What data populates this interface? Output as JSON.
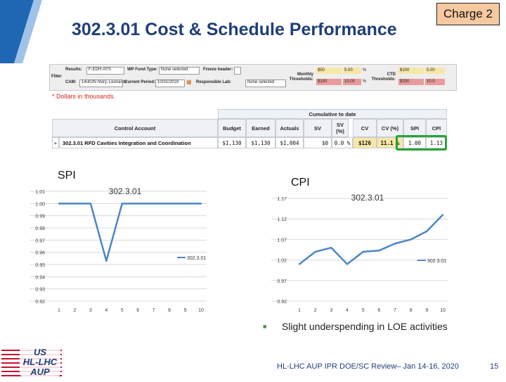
{
  "title": "302.3.01 Cost & Schedule Performance",
  "charge_label": "Charge 2",
  "filter_panel": {
    "filter_label": "Filter",
    "results_label": "Results:",
    "results_value": "F-EDH-AYS",
    "wp_fund_type_label": "WP Fund Type:",
    "wp_fund_type_value": "None selected",
    "freeze_header_label": "Freeze header:",
    "cam_label": "CAM:",
    "cam_value": "14uh2N ntory, Leonarde",
    "current_period_label": "Current Period:",
    "current_period_value": "10/31/2019",
    "responsible_lab_label": "Responsible Lab:",
    "responsible_lab_value": "None selected",
    "monthly_thresholds_label": "Monthly Thresholds:",
    "ctd_thresholds_label": "CTD Thresholds:",
    "monthly_top_1": "$50",
    "monthly_top_2": "5.00",
    "monthly_bottom_1": "$100",
    "monthly_bottom_2": "10.00",
    "ctd_top_1": "$100",
    "ctd_top_2": "5.00",
    "ctd_bottom_1": "$200",
    "ctd_bottom_2": "10.0",
    "percent_sign": "%"
  },
  "note": "* Dollars in thousands.",
  "table": {
    "group_header": "Cumulative to date",
    "headers": {
      "control_account": "Control Account",
      "budget": "Budget",
      "earned": "Earned",
      "actuals": "Actuals",
      "sv": "SV",
      "sv_pct": "SV (%)",
      "cv": "CV",
      "cv_pct": "CV (%)",
      "spi": "SPI",
      "cpi": "CPI"
    },
    "row": {
      "expander": "+",
      "control_account": "302.3.01 RFD Cavities Integration and Coordination",
      "budget": "$1,130",
      "earned": "$1,130",
      "actuals": "$1,004",
      "sv": "$0",
      "sv_pct": "0.0 %",
      "cv": "$126",
      "cv_pct": "11.1 %",
      "spi": "1.00",
      "cpi": "1.13"
    },
    "colors": {
      "cv_fill": "#f7e7a6",
      "highlight_border": "#27a338"
    }
  },
  "chart_data": [
    {
      "type": "line",
      "title": "SPI",
      "x": [
        1,
        2,
        3,
        4,
        5,
        6,
        7,
        8,
        9,
        10
      ],
      "x_tick_labels": [
        "1",
        "2",
        "3",
        "4",
        "5",
        "6",
        "7",
        "8",
        "9",
        "10"
      ],
      "y_tick_labels": [
        "1.01",
        "1.00",
        "0.99",
        "0.98",
        "0.97",
        "0.96",
        "0.95",
        "0.94",
        "0.93",
        "0.92"
      ],
      "ylim": [
        0.92,
        1.01
      ],
      "grid": true,
      "series": [
        {
          "name": "302.3.01",
          "values": [
            1.0,
            1.0,
            1.0,
            0.953,
            1.0,
            1.0,
            1.0,
            1.0,
            1.0,
            1.0
          ],
          "color": "#4a86c8"
        }
      ],
      "legend": "top-right"
    },
    {
      "type": "line",
      "title": "CPI",
      "x": [
        1,
        2,
        3,
        4,
        5,
        6,
        7,
        8,
        9,
        10
      ],
      "x_tick_labels": [
        "1",
        "2",
        "3",
        "4",
        "5",
        "6",
        "7",
        "8",
        "9",
        "10"
      ],
      "y_tick_labels": [
        "1.17",
        "1.12",
        "1.07",
        "1.02",
        "0.97",
        "0.92"
      ],
      "ylim": [
        0.92,
        1.17
      ],
      "grid": true,
      "series": [
        {
          "name": "302.3.01",
          "values": [
            1.01,
            1.04,
            1.05,
            1.01,
            1.04,
            1.043,
            1.06,
            1.07,
            1.09,
            1.13
          ],
          "color": "#4a86c8"
        }
      ],
      "legend": "top-right"
    }
  ],
  "bullet_text": "Slight underspending in LOE activities",
  "footer": "HL-LHC AUP IPR DOE/SC Review– Jan 14-16, 2020",
  "page_number": "15",
  "logo": {
    "line1": "US",
    "line2": "HL-LHC",
    "line3": "AUP"
  },
  "colors": {
    "title": "#1f3f7a",
    "charge_fill": "#f7c9a0",
    "series_line": "#4a86c8",
    "threshold_yellow": "#f7e7a6",
    "threshold_red": "#e99a9a",
    "note_red": "#d9261c"
  }
}
